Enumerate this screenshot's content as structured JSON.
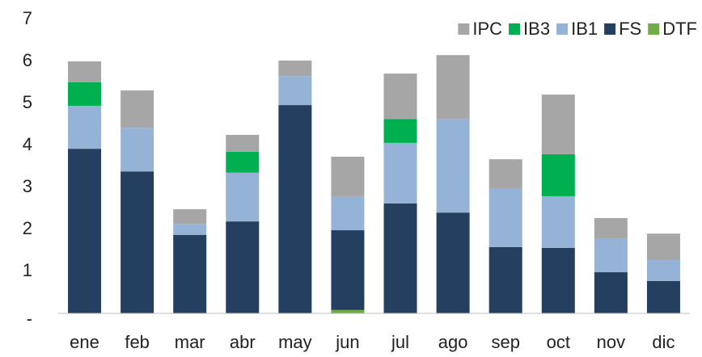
{
  "chart_data": {
    "type": "stacked_bar",
    "categories": [
      "ene",
      "feb",
      "mar",
      "abr",
      "may",
      "jun",
      "jul",
      "ago",
      "sep",
      "oct",
      "nov",
      "dic"
    ],
    "series": [
      {
        "name": "IPC",
        "color": "#a6a6a6",
        "values": [
          0.5,
          0.89,
          0.35,
          0.4,
          0.37,
          0.94,
          1.08,
          1.53,
          0.69,
          1.42,
          0.48,
          0.63
        ]
      },
      {
        "name": "IB3",
        "color": "#00b050",
        "values": [
          0.56,
          0,
          0,
          0.5,
          0,
          0,
          0.57,
          0,
          0,
          1.0,
          0,
          0
        ]
      },
      {
        "name": "IB1",
        "color": "#95b3d7",
        "values": [
          1.02,
          1.04,
          0.26,
          1.16,
          0.69,
          0.81,
          1.44,
          2.22,
          1.4,
          1.23,
          0.81,
          0.5
        ]
      },
      {
        "name": "FS",
        "color": "#243f60",
        "values": [
          3.92,
          3.38,
          1.87,
          2.19,
          4.96,
          1.9,
          2.62,
          2.4,
          1.58,
          1.56,
          0.98,
          0.77
        ]
      },
      {
        "name": "DTF",
        "color": "#70ad47",
        "values": [
          0,
          0,
          0,
          0,
          0,
          0.08,
          0,
          0,
          0,
          0,
          0,
          0
        ]
      }
    ],
    "ylim": [
      0,
      7
    ],
    "yticks": [
      {
        "value": 0,
        "label": "-"
      },
      1,
      2,
      3,
      4,
      5,
      6,
      7
    ],
    "legend": "top-right"
  }
}
